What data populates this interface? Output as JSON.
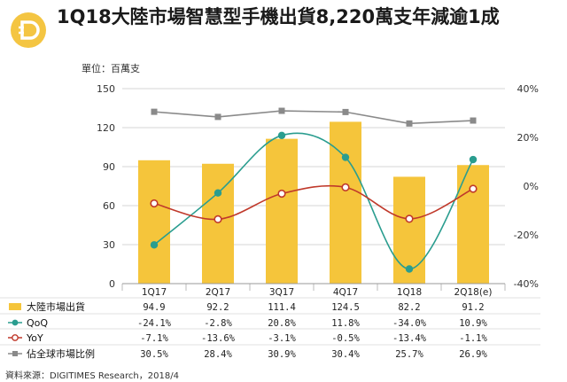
{
  "title": "1Q18大陸市場智慧型手機出貨8,220萬支年減逾1成",
  "unit_label": "單位：百萬支",
  "source": "資料來源：DIGITIMES Research，2018/4",
  "logo_icon": "digitimes-d-logo",
  "colors": {
    "bar": "#f5c53b",
    "qoq": "#2a9d8f",
    "yoy": "#c0392b",
    "share": "#8a8a8a",
    "logo": "#f4c542"
  },
  "chart_data": {
    "type": "bar",
    "categories": [
      "1Q17",
      "2Q17",
      "3Q17",
      "4Q17",
      "1Q18",
      "2Q18(e)"
    ],
    "y_left": {
      "ticks": [
        "0",
        "30",
        "60",
        "90",
        "120",
        "150"
      ],
      "ylim": [
        0,
        150
      ]
    },
    "y_right": {
      "ticks": [
        "-40%",
        "-20%",
        "0%",
        "20%",
        "40%"
      ],
      "ylim": [
        -40,
        40
      ]
    },
    "series": [
      {
        "name": "大陸市場出貨",
        "kind": "bar",
        "axis": "left",
        "values": [
          94.9,
          92.2,
          111.4,
          124.5,
          82.2,
          91.2
        ],
        "labels": [
          "94.9",
          "92.2",
          "111.4",
          "124.5",
          "82.2",
          "91.2"
        ]
      },
      {
        "name": "QoQ",
        "kind": "smooth-line",
        "axis": "right",
        "marker": "filled-circle",
        "values": [
          -24.1,
          -2.8,
          20.8,
          11.8,
          -34.0,
          10.9
        ],
        "labels": [
          "-24.1%",
          "-2.8%",
          "20.8%",
          "11.8%",
          "-34.0%",
          "10.9%"
        ]
      },
      {
        "name": "YoY",
        "kind": "smooth-line",
        "axis": "right",
        "marker": "open-circle",
        "values": [
          -7.1,
          -13.6,
          -3.1,
          -0.5,
          -13.4,
          -1.1
        ],
        "labels": [
          "-7.1%",
          "-13.6%",
          "-3.1%",
          "-0.5%",
          "-13.4%",
          "-1.1%"
        ]
      },
      {
        "name": "佔全球市場比例",
        "kind": "line",
        "axis": "right",
        "marker": "square",
        "values": [
          30.5,
          28.4,
          30.9,
          30.4,
          25.7,
          26.9
        ],
        "labels": [
          "30.5%",
          "28.4%",
          "30.9%",
          "30.4%",
          "25.7%",
          "26.9%"
        ]
      }
    ],
    "grid": true,
    "legend": "table-below"
  }
}
